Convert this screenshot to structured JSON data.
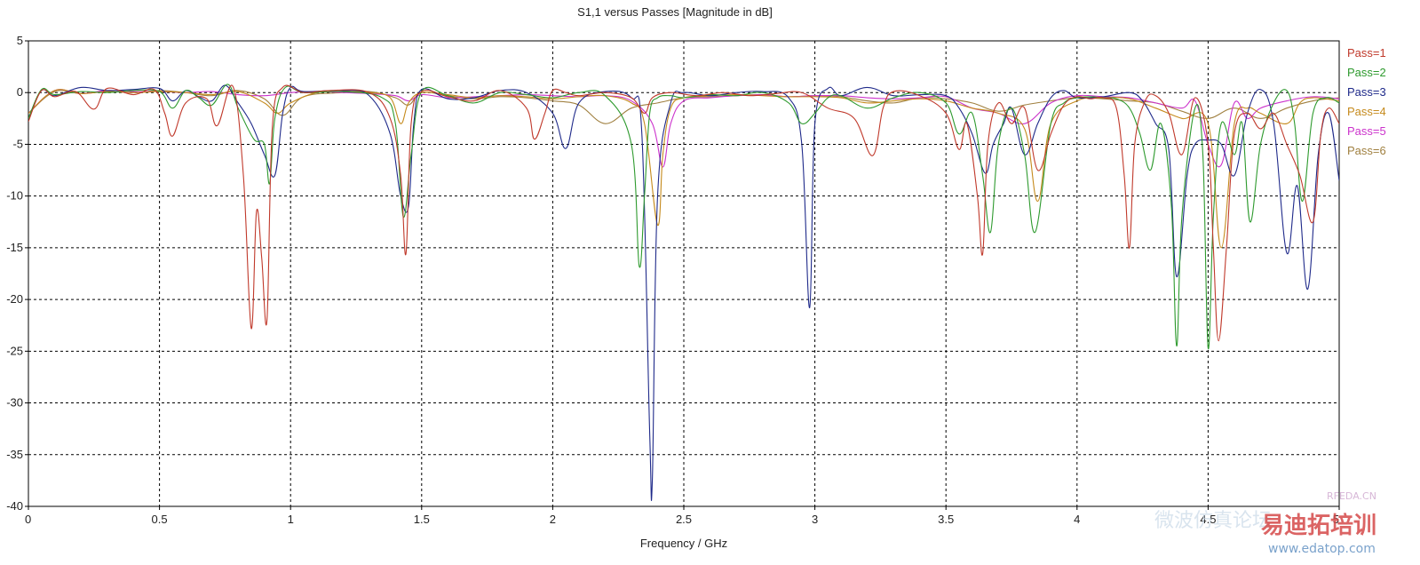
{
  "chart_data": {
    "type": "line",
    "title": "S1,1 versus Passes [Magnitude in dB]",
    "xlabel": "Frequency / GHz",
    "ylabel": "",
    "xlim": [
      0,
      5
    ],
    "ylim": [
      -40,
      5
    ],
    "x_ticks": [
      "0",
      "0.5",
      "1",
      "1.5",
      "2",
      "2.5",
      "3",
      "3.5",
      "4",
      "4.5",
      "5"
    ],
    "y_ticks": [
      "5",
      "0",
      "-5",
      "-10",
      "-15",
      "-20",
      "-25",
      "-30",
      "-35",
      "-40"
    ],
    "grid": true,
    "legend_position": "right",
    "series": [
      {
        "name": "Pass=1",
        "color": "#c0392b",
        "x": [
          0,
          0.05,
          0.1,
          0.18,
          0.25,
          0.3,
          0.4,
          0.48,
          0.52,
          0.55,
          0.6,
          0.68,
          0.72,
          0.78,
          0.82,
          0.85,
          0.87,
          0.89,
          0.91,
          0.93,
          0.97,
          1.05,
          1.15,
          1.3,
          1.38,
          1.42,
          1.44,
          1.46,
          1.5,
          1.6,
          1.7,
          1.8,
          1.9,
          1.93,
          1.97,
          2.0,
          2.05,
          2.1,
          2.2,
          2.3,
          2.35,
          2.38,
          2.45,
          2.55,
          2.65,
          2.75,
          2.85,
          2.95,
          3.05,
          3.15,
          3.22,
          3.26,
          3.3,
          3.4,
          3.5,
          3.55,
          3.58,
          3.62,
          3.64,
          3.66,
          3.7,
          3.75,
          3.8,
          3.85,
          3.9,
          3.95,
          4.0,
          4.05,
          4.1,
          4.15,
          4.18,
          4.2,
          4.22,
          4.26,
          4.3,
          4.35,
          4.4,
          4.45,
          4.5,
          4.52,
          4.54,
          4.57,
          4.6,
          4.65,
          4.7,
          4.75,
          4.8,
          4.85,
          4.9,
          4.93,
          4.96,
          5.0
        ],
        "y": [
          -2.8,
          0.2,
          -0.4,
          0.1,
          -1.6,
          0.4,
          -0.2,
          0.3,
          -2.0,
          -4.2,
          -1.0,
          -0.6,
          -3.2,
          0.6,
          -8.0,
          -22.8,
          -11.5,
          -16.0,
          -22.0,
          -3.5,
          0.5,
          0.0,
          0.2,
          0.0,
          -2.5,
          -8.0,
          -15.6,
          -3.0,
          0.1,
          -0.4,
          -0.8,
          0.2,
          -1.5,
          -4.5,
          -2.0,
          0.2,
          0.0,
          -0.3,
          0.0,
          -0.5,
          -2.0,
          -0.5,
          0.0,
          -0.3,
          0.0,
          -0.3,
          -0.1,
          0.0,
          -1.5,
          -2.5,
          -6.1,
          -1.5,
          0.1,
          -0.3,
          -2.0,
          -5.5,
          -3.0,
          -10.0,
          -15.6,
          -5.0,
          -1.0,
          -3.0,
          -1.5,
          -7.5,
          -4.0,
          -1.2,
          -0.4,
          -0.6,
          -0.5,
          -1.5,
          -8.0,
          -15.0,
          -5.0,
          -0.8,
          -0.3,
          -2.0,
          -6.0,
          -0.5,
          -5.0,
          -15.0,
          -24.0,
          -15.0,
          -4.0,
          -2.0,
          -3.5,
          -2.0,
          -5.0,
          -8.0,
          -12.5,
          -4.0,
          -1.5,
          -3.0
        ]
      },
      {
        "name": "Pass=2",
        "color": "#2e9a2e",
        "x": [
          0,
          0.05,
          0.1,
          0.2,
          0.3,
          0.4,
          0.5,
          0.55,
          0.6,
          0.65,
          0.7,
          0.76,
          0.8,
          0.86,
          0.9,
          0.92,
          0.94,
          0.98,
          1.05,
          1.2,
          1.35,
          1.4,
          1.43,
          1.46,
          1.5,
          1.6,
          1.7,
          1.8,
          1.9,
          2.0,
          2.1,
          2.2,
          2.3,
          2.33,
          2.35,
          2.37,
          2.4,
          2.45,
          2.5,
          2.6,
          2.7,
          2.8,
          2.9,
          2.95,
          3.0,
          3.05,
          3.1,
          3.2,
          3.3,
          3.4,
          3.5,
          3.55,
          3.6,
          3.64,
          3.67,
          3.7,
          3.75,
          3.8,
          3.84,
          3.9,
          3.95,
          4.0,
          4.05,
          4.1,
          4.15,
          4.2,
          4.24,
          4.28,
          4.32,
          4.36,
          4.38,
          4.4,
          4.45,
          4.48,
          4.5,
          4.52,
          4.55,
          4.6,
          4.63,
          4.66,
          4.7,
          4.75,
          4.8,
          4.83,
          4.86,
          4.9,
          4.95,
          5.0
        ],
        "y": [
          -2.5,
          0.3,
          -0.2,
          0.1,
          0.0,
          0.2,
          0.1,
          -1.5,
          0.2,
          -0.5,
          -1.2,
          0.8,
          -1.5,
          -4.5,
          -5.0,
          -8.8,
          -2.5,
          0.5,
          0.0,
          0.1,
          -0.5,
          -3.0,
          -12.0,
          -6.0,
          0.1,
          -0.3,
          -1.0,
          0.0,
          -0.2,
          -0.5,
          0.0,
          -0.3,
          -5.0,
          -16.8,
          -10.0,
          -2.0,
          -0.5,
          -0.3,
          -0.5,
          -0.2,
          -0.3,
          0.0,
          -1.0,
          -3.0,
          -2.0,
          -0.5,
          -0.3,
          -1.5,
          -0.5,
          0.0,
          -1.0,
          -4.0,
          -2.0,
          -8.0,
          -13.5,
          -5.0,
          -1.5,
          -6.0,
          -13.5,
          -3.0,
          -1.0,
          -0.5,
          -0.4,
          -0.5,
          -0.6,
          -1.5,
          -4.0,
          -7.5,
          -3.0,
          -11.0,
          -24.5,
          -12.0,
          -1.5,
          -6.0,
          -24.7,
          -12.0,
          -3.0,
          -6.0,
          -3.0,
          -12.5,
          -5.0,
          -1.0,
          0.2,
          -3.0,
          -10.5,
          -2.0,
          -0.5,
          -1.0
        ]
      },
      {
        "name": "Pass=3",
        "color": "#1f2a8a",
        "x": [
          0,
          0.05,
          0.1,
          0.2,
          0.3,
          0.4,
          0.5,
          0.55,
          0.6,
          0.65,
          0.7,
          0.75,
          0.8,
          0.85,
          0.9,
          0.94,
          0.97,
          1.0,
          1.05,
          1.2,
          1.3,
          1.38,
          1.42,
          1.45,
          1.47,
          1.5,
          1.6,
          1.7,
          1.8,
          1.9,
          2.0,
          2.05,
          2.1,
          2.2,
          2.3,
          2.34,
          2.37,
          2.38,
          2.4,
          2.45,
          2.5,
          2.6,
          2.7,
          2.8,
          2.9,
          2.95,
          2.98,
          3.0,
          3.05,
          3.1,
          3.2,
          3.3,
          3.4,
          3.5,
          3.55,
          3.6,
          3.65,
          3.68,
          3.72,
          3.75,
          3.8,
          3.85,
          3.9,
          3.95,
          4.0,
          4.1,
          4.2,
          4.25,
          4.3,
          4.35,
          4.38,
          4.42,
          4.45,
          4.5,
          4.55,
          4.6,
          4.65,
          4.7,
          4.75,
          4.8,
          4.84,
          4.88,
          4.92,
          4.96,
          5.0
        ],
        "y": [
          -2.5,
          0.2,
          -0.3,
          0.5,
          0.2,
          0.3,
          0.4,
          -0.8,
          0.2,
          -0.4,
          -0.8,
          0.7,
          -1.0,
          -3.0,
          -6.0,
          -8.0,
          -2.0,
          0.5,
          0.1,
          0.2,
          -0.3,
          -4.0,
          -10.0,
          -11.0,
          -3.0,
          0.3,
          -0.6,
          -0.5,
          0.2,
          0.0,
          -2.0,
          -5.4,
          -1.0,
          0.1,
          -0.5,
          -4.0,
          -33.0,
          -37.4,
          -10.0,
          -1.0,
          0.0,
          -0.3,
          0.0,
          0.1,
          -0.5,
          -5.0,
          -20.8,
          -3.0,
          0.4,
          -0.3,
          0.5,
          -0.3,
          -0.2,
          -0.3,
          -1.5,
          -4.0,
          -7.8,
          -5.0,
          -3.0,
          -1.5,
          -6.0,
          -3.0,
          -0.5,
          0.2,
          -0.5,
          -0.4,
          0.0,
          -0.8,
          -3.0,
          -5.5,
          -17.8,
          -8.0,
          -5.0,
          -4.6,
          -5.0,
          -8.0,
          -2.0,
          0.3,
          -3.0,
          -15.5,
          -9.0,
          -19.0,
          -6.0,
          -2.0,
          -8.5
        ]
      },
      {
        "name": "Pass=4",
        "color": "#c58a1c",
        "x": [
          0,
          0.1,
          0.2,
          0.3,
          0.4,
          0.5,
          0.6,
          0.7,
          0.8,
          0.9,
          0.95,
          1.0,
          1.1,
          1.2,
          1.3,
          1.38,
          1.42,
          1.45,
          1.5,
          1.6,
          1.7,
          1.8,
          1.9,
          2.0,
          2.1,
          2.2,
          2.3,
          2.35,
          2.4,
          2.42,
          2.45,
          2.5,
          2.6,
          2.7,
          2.8,
          2.9,
          3.0,
          3.1,
          3.2,
          3.3,
          3.4,
          3.5,
          3.6,
          3.7,
          3.8,
          3.85,
          3.9,
          4.0,
          4.1,
          4.2,
          4.3,
          4.4,
          4.5,
          4.55,
          4.6,
          4.65,
          4.7,
          4.8,
          4.85,
          4.9,
          5.0
        ],
        "y": [
          -2.0,
          0.2,
          -0.1,
          0.1,
          0.0,
          0.1,
          0.0,
          -0.2,
          0.1,
          -1.0,
          -2.0,
          -1.0,
          0.0,
          0.1,
          0.0,
          -0.5,
          -3.0,
          -1.0,
          0.0,
          -0.2,
          -0.5,
          -0.3,
          -0.4,
          -0.6,
          -0.4,
          -0.3,
          -1.0,
          -3.0,
          -12.8,
          -6.0,
          -1.5,
          -0.5,
          -0.3,
          -0.2,
          -0.3,
          -0.4,
          -0.4,
          -0.5,
          -1.0,
          -0.8,
          -0.6,
          -0.8,
          -1.5,
          -2.0,
          -3.5,
          -10.5,
          -3.0,
          -0.8,
          -0.5,
          -0.6,
          -1.5,
          -2.5,
          -3.0,
          -15.0,
          -3.0,
          -1.5,
          -2.0,
          -3.0,
          -1.0,
          -0.5,
          -0.8
        ]
      },
      {
        "name": "Pass=5",
        "color": "#cc33cc",
        "x": [
          0,
          0.1,
          0.2,
          0.3,
          0.4,
          0.5,
          0.6,
          0.7,
          0.8,
          0.9,
          1.0,
          1.1,
          1.2,
          1.3,
          1.4,
          1.45,
          1.5,
          1.6,
          1.7,
          1.8,
          1.9,
          2.0,
          2.1,
          2.2,
          2.3,
          2.38,
          2.42,
          2.45,
          2.5,
          2.6,
          2.7,
          2.8,
          2.9,
          3.0,
          3.1,
          3.2,
          3.3,
          3.4,
          3.5,
          3.6,
          3.7,
          3.8,
          3.9,
          4.0,
          4.1,
          4.2,
          4.3,
          4.4,
          4.45,
          4.5,
          4.55,
          4.6,
          4.65,
          4.7,
          4.8,
          4.9,
          5.0
        ],
        "y": [
          -2.0,
          0.2,
          -0.1,
          0.2,
          0.1,
          0.1,
          0.0,
          0.1,
          -0.2,
          -0.3,
          0.0,
          0.1,
          0.0,
          -0.1,
          -0.3,
          -0.8,
          -0.2,
          -0.5,
          -0.4,
          -0.3,
          -0.2,
          -0.3,
          -0.4,
          -0.3,
          -0.8,
          -3.0,
          -7.2,
          -3.0,
          -0.8,
          -0.5,
          -0.3,
          -0.2,
          -0.4,
          -0.3,
          -0.3,
          -0.5,
          -0.6,
          -0.5,
          -0.4,
          -1.5,
          -2.0,
          -3.0,
          -1.0,
          -0.3,
          -0.4,
          -0.5,
          -1.0,
          -1.5,
          -0.8,
          -5.0,
          -7.0,
          -1.0,
          -2.5,
          -1.5,
          -0.8,
          -0.4,
          -0.6
        ]
      },
      {
        "name": "Pass=6",
        "color": "#a08040",
        "x": [
          0,
          0.1,
          0.2,
          0.3,
          0.4,
          0.5,
          0.6,
          0.7,
          0.8,
          0.9,
          0.97,
          1.05,
          1.2,
          1.3,
          1.4,
          1.45,
          1.5,
          1.6,
          1.7,
          1.8,
          1.9,
          2.0,
          2.1,
          2.2,
          2.3,
          2.4,
          2.5,
          2.6,
          2.7,
          2.8,
          2.9,
          3.0,
          3.1,
          3.2,
          3.3,
          3.4,
          3.5,
          3.6,
          3.7,
          3.8,
          3.9,
          4.0,
          4.1,
          4.2,
          4.3,
          4.4,
          4.5,
          4.6,
          4.7,
          4.8,
          4.9,
          5.0
        ],
        "y": [
          -2.0,
          0.1,
          -0.1,
          0.1,
          0.0,
          0.2,
          0.0,
          -0.3,
          0.2,
          -0.6,
          -2.2,
          -0.4,
          0.0,
          0.1,
          -0.5,
          -1.2,
          0.0,
          -0.3,
          -0.6,
          -0.4,
          -0.5,
          -0.8,
          -1.2,
          -3.0,
          -1.5,
          -1.0,
          -0.5,
          -0.4,
          -0.3,
          -0.2,
          -0.4,
          -0.3,
          -0.4,
          -0.8,
          -1.0,
          -0.5,
          -0.6,
          -1.0,
          -1.8,
          -1.2,
          -0.8,
          -0.5,
          -0.6,
          -0.8,
          -1.0,
          -1.8,
          -2.5,
          -1.5,
          -2.5,
          -1.5,
          -0.8,
          -0.5
        ]
      }
    ]
  },
  "watermark": {
    "logo_text": "易迪拓培训",
    "url_text": "www.edatop.com",
    "tag_text": "RFEDA.CN",
    "cn_text": "微波仿真论坛"
  }
}
